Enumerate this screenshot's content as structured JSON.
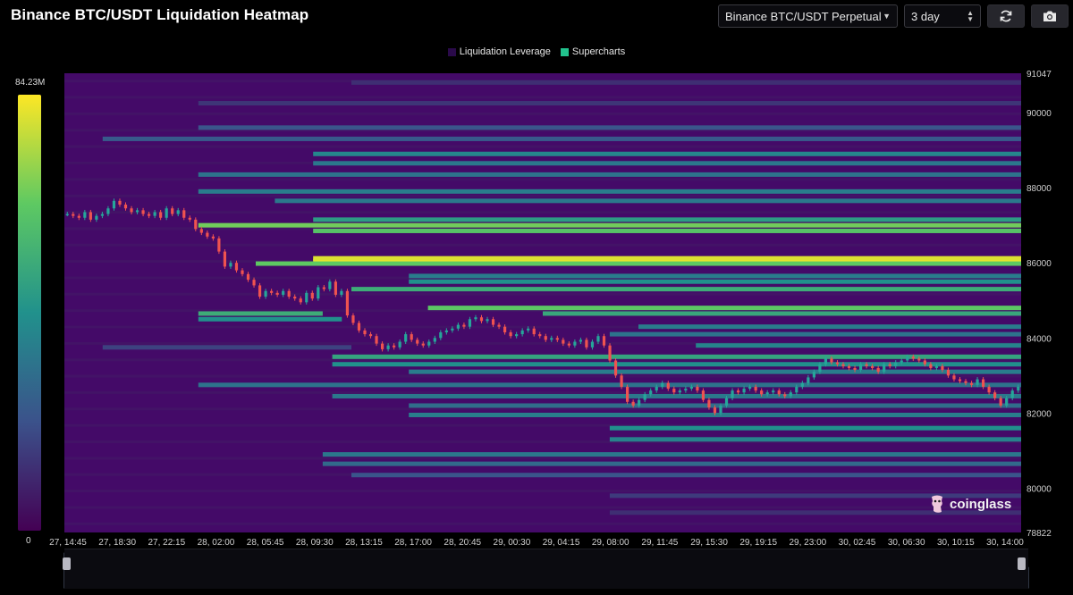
{
  "header": {
    "title": "Binance BTC/USDT Liquidation Heatmap",
    "market_select": "Binance BTC/USDT Perpetual",
    "range_select": "3 day"
  },
  "icons": {
    "market_caret": "chevron-down-icon",
    "range_stepper": "stepper-icon",
    "refresh": "refresh-icon",
    "camera": "camera-icon",
    "brand_logo": "coinglass-logo"
  },
  "brand": {
    "name": "coinglass"
  },
  "colors": {
    "background": "#000000",
    "plot_background": "#440a68",
    "candle_up": "#26a69a",
    "candle_down": "#ef5350",
    "legend_leverage": "#2a0a4a",
    "legend_supercharts": "#22c38e"
  },
  "chart_data": {
    "type": "heatmap",
    "title": "Binance BTC/USDT Liquidation Heatmap",
    "legend": [
      {
        "name": "Liquidation Leverage"
      },
      {
        "name": "Supercharts"
      }
    ],
    "legend_position": "top-center",
    "colorbar": {
      "min_label": "0",
      "max_label": "84.23M",
      "min": 0,
      "max": 84230000
    },
    "y_axis": {
      "range": [
        78822,
        91047
      ],
      "ticks": [
        80000,
        82000,
        84000,
        86000,
        88000,
        90000
      ],
      "tick_labels": [
        "80000",
        "82000",
        "84000",
        "86000",
        "88000",
        "90000"
      ],
      "max_label": "91047",
      "min_label": "78822",
      "position": "right"
    },
    "x_axis": {
      "tick_labels": [
        "27, 14:45",
        "27, 18:30",
        "27, 22:15",
        "28, 02:00",
        "28, 05:45",
        "28, 09:30",
        "28, 13:15",
        "28, 17:00",
        "28, 20:45",
        "29, 00:30",
        "29, 04:15",
        "29, 08:00",
        "29, 11:45",
        "29, 15:30",
        "29, 19:15",
        "29, 23:00",
        "30, 02:45",
        "30, 06:30",
        "30, 10:15",
        "30, 14:00"
      ]
    },
    "liquidation_levels": [
      {
        "price": 86050,
        "start": 0.26,
        "intensity": 1.0
      },
      {
        "price": 86120,
        "start": 0.26,
        "intensity": 0.95
      },
      {
        "price": 85980,
        "start": 0.2,
        "intensity": 0.75
      },
      {
        "price": 87000,
        "start": 0.14,
        "intensity": 0.78
      },
      {
        "price": 86850,
        "start": 0.26,
        "intensity": 0.72
      },
      {
        "price": 87150,
        "start": 0.26,
        "intensity": 0.55
      },
      {
        "price": 84800,
        "start": 0.38,
        "intensity": 0.74
      },
      {
        "price": 84650,
        "start": 0.5,
        "intensity": 0.6
      },
      {
        "price": 85300,
        "start": 0.3,
        "intensity": 0.62
      },
      {
        "price": 85500,
        "start": 0.36,
        "intensity": 0.5
      },
      {
        "price": 85650,
        "start": 0.36,
        "intensity": 0.42
      },
      {
        "price": 88900,
        "start": 0.26,
        "intensity": 0.46
      },
      {
        "price": 88650,
        "start": 0.26,
        "intensity": 0.4
      },
      {
        "price": 88350,
        "start": 0.14,
        "intensity": 0.38
      },
      {
        "price": 87900,
        "start": 0.14,
        "intensity": 0.42
      },
      {
        "price": 87650,
        "start": 0.22,
        "intensity": 0.4
      },
      {
        "price": 89300,
        "start": 0.04,
        "intensity": 0.28
      },
      {
        "price": 89600,
        "start": 0.14,
        "intensity": 0.26
      },
      {
        "price": 90250,
        "start": 0.14,
        "intensity": 0.16
      },
      {
        "price": 90800,
        "start": 0.3,
        "intensity": 0.14
      },
      {
        "price": 84300,
        "start": 0.6,
        "intensity": 0.42
      },
      {
        "price": 84100,
        "start": 0.57,
        "intensity": 0.38
      },
      {
        "price": 83800,
        "start": 0.66,
        "intensity": 0.45
      },
      {
        "price": 83500,
        "start": 0.28,
        "intensity": 0.58
      },
      {
        "price": 83300,
        "start": 0.28,
        "intensity": 0.5
      },
      {
        "price": 83100,
        "start": 0.36,
        "intensity": 0.42
      },
      {
        "price": 82750,
        "start": 0.14,
        "intensity": 0.38
      },
      {
        "price": 82450,
        "start": 0.28,
        "intensity": 0.4
      },
      {
        "price": 82200,
        "start": 0.36,
        "intensity": 0.36
      },
      {
        "price": 81950,
        "start": 0.36,
        "intensity": 0.42
      },
      {
        "price": 81600,
        "start": 0.57,
        "intensity": 0.5
      },
      {
        "price": 81300,
        "start": 0.57,
        "intensity": 0.44
      },
      {
        "price": 80900,
        "start": 0.27,
        "intensity": 0.4
      },
      {
        "price": 80650,
        "start": 0.27,
        "intensity": 0.34
      },
      {
        "price": 80350,
        "start": 0.3,
        "intensity": 0.26
      },
      {
        "price": 79800,
        "start": 0.57,
        "intensity": 0.18
      },
      {
        "price": 79350,
        "start": 0.57,
        "intensity": 0.14
      },
      {
        "price": 84650,
        "start": 0.14,
        "intensity": 0.62,
        "end": 0.27
      },
      {
        "price": 84500,
        "start": 0.14,
        "intensity": 0.5,
        "end": 0.29
      },
      {
        "price": 83750,
        "start": 0.04,
        "intensity": 0.2,
        "end": 0.3
      }
    ],
    "price_series": {
      "description_free": true,
      "values": [
        87300,
        87250,
        87200,
        87350,
        87150,
        87250,
        87300,
        87450,
        87650,
        87550,
        87450,
        87350,
        87400,
        87300,
        87250,
        87350,
        87200,
        87450,
        87300,
        87400,
        87200,
        87150,
        86900,
        86800,
        86700,
        86650,
        86300,
        85900,
        86000,
        85800,
        85700,
        85550,
        85400,
        85100,
        85250,
        85200,
        85150,
        85250,
        85100,
        85050,
        84950,
        85200,
        85050,
        85350,
        85300,
        85500,
        85150,
        85250,
        84600,
        84400,
        84200,
        84100,
        84050,
        83850,
        83700,
        83800,
        83750,
        83900,
        84100,
        83950,
        83850,
        83800,
        83900,
        84000,
        84150,
        84200,
        84250,
        84350,
        84300,
        84500,
        84550,
        84450,
        84500,
        84350,
        84300,
        84150,
        84050,
        84100,
        84200,
        84250,
        84100,
        84050,
        83950,
        84000,
        83950,
        83850,
        83800,
        83900,
        83950,
        83750,
        83900,
        84050,
        83800,
        83400,
        83000,
        82700,
        82300,
        82200,
        82350,
        82500,
        82600,
        82700,
        82800,
        82650,
        82550,
        82600,
        82650,
        82700,
        82600,
        82350,
        82150,
        82000,
        82200,
        82400,
        82600,
        82550,
        82650,
        82700,
        82600,
        82500,
        82550,
        82600,
        82500,
        82450,
        82550,
        82700,
        82800,
        82950,
        83100,
        83300,
        83450,
        83350,
        83300,
        83250,
        83200,
        83150,
        83300,
        83250,
        83200,
        83100,
        83300,
        83250,
        83350,
        83400,
        83500,
        83450,
        83400,
        83300,
        83200,
        83250,
        83150,
        83000,
        82900,
        82850,
        82800,
        82750,
        82900,
        82700,
        82550,
        82400,
        82200,
        82400,
        82600,
        82700
      ]
    }
  }
}
